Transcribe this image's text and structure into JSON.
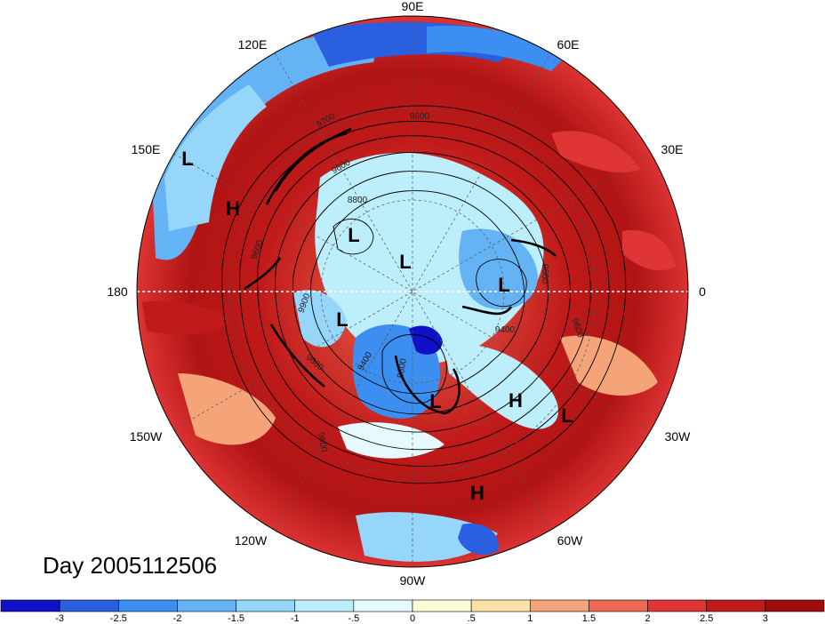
{
  "title": "Day 2005112506",
  "longitude_labels": [
    "90E",
    "60E",
    "30E",
    "0",
    "30W",
    "60W",
    "90W",
    "120W",
    "150W",
    "180",
    "150E",
    "120E"
  ],
  "pressure_systems": [
    {
      "type": "L",
      "label": "L"
    },
    {
      "type": "H",
      "label": "H"
    },
    {
      "type": "L",
      "label": "L"
    },
    {
      "type": "L",
      "label": "L"
    },
    {
      "type": "L",
      "label": "L"
    },
    {
      "type": "L",
      "label": "L"
    },
    {
      "type": "L",
      "label": "L"
    },
    {
      "type": "H",
      "label": "H"
    },
    {
      "type": "L",
      "label": "L"
    },
    {
      "type": "H",
      "label": "H"
    }
  ],
  "contour_labels": [
    "9700",
    "9600",
    "9600",
    "8800",
    "9600",
    "9900",
    "9400",
    "9600",
    "9600",
    "9400",
    "8800",
    "9600",
    "9600"
  ],
  "colorbar": {
    "colors": [
      "#1010c8",
      "#2a5fe0",
      "#3c8ff0",
      "#64b4f5",
      "#96d6fa",
      "#bdeefc",
      "#e4fafe",
      "#fffbd8",
      "#fbe3a8",
      "#f5a47a",
      "#ef6a52",
      "#e03535",
      "#c01a1a",
      "#a00d0d"
    ],
    "ticks": [
      "-3",
      "-2.5",
      "-2",
      "-1.5",
      "-1",
      "-.5",
      "0",
      ".5",
      "1",
      "1.5",
      "2",
      "2.5",
      "3"
    ]
  }
}
